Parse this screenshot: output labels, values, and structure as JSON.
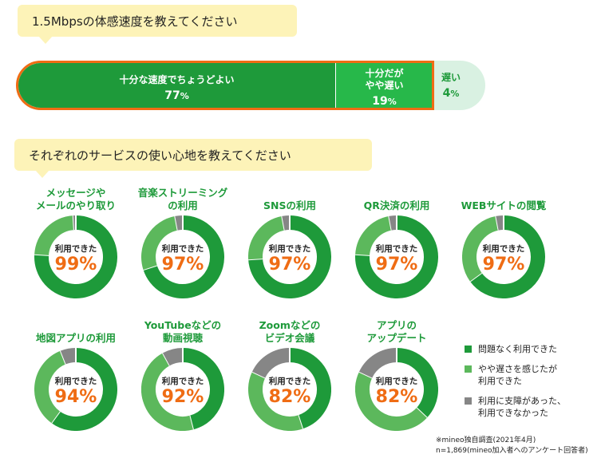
{
  "q1": {
    "text": "1.5Mbpsの体感速度を教えてください"
  },
  "q2": {
    "text": "それぞれのサービスの使い心地を教えてください"
  },
  "colors": {
    "dark_green": "#1e9a3a",
    "light_green": "#5cb85c",
    "gray": "#868686",
    "orange": "#ef6c14"
  },
  "chart_data": [
    {
      "type": "bar",
      "stacked": true,
      "orientation": "horizontal",
      "segments": [
        {
          "label": "十分な速度でちょうどよい",
          "value": 77,
          "unit": "%"
        },
        {
          "label": "十分だが\nやや遅い",
          "value": 19,
          "unit": "%"
        },
        {
          "label": "遅い",
          "value": 4,
          "unit": "%"
        }
      ]
    },
    {
      "type": "pie",
      "center_label": "利用できた",
      "legend": [
        {
          "label": "問題なく利用できた",
          "color": "#1e9a3a"
        },
        {
          "label": "やや遅さを感じたが\n利用できた",
          "color": "#5cb85c"
        },
        {
          "label": "利用に支障があった、\n利用できなかった",
          "color": "#868686"
        }
      ],
      "donuts": [
        {
          "title": "メッセージや\nメールのやり取り",
          "center_value": "99%",
          "values": [
            76,
            23,
            1
          ]
        },
        {
          "title": "音楽ストリーミング\nの利用",
          "center_value": "97%",
          "values": [
            70,
            27,
            3
          ]
        },
        {
          "title": "SNSの利用",
          "center_value": "97%",
          "values": [
            74,
            23,
            3
          ]
        },
        {
          "title": "QR決済の利用",
          "center_value": "97%",
          "values": [
            76,
            21,
            3
          ]
        },
        {
          "title": "WEBサイトの閲覧",
          "center_value": "97%",
          "values": [
            65,
            32,
            3
          ]
        },
        {
          "title": "地図アプリの利用",
          "center_value": "94%",
          "values": [
            60,
            34,
            6
          ]
        },
        {
          "title": "YouTubeなどの\n動画視聴",
          "center_value": "92%",
          "values": [
            46,
            46,
            8
          ]
        },
        {
          "title": "Zoomなどの\nビデオ会議",
          "center_value": "82%",
          "values": [
            45,
            37,
            18
          ]
        },
        {
          "title": "アプリの\nアップデート",
          "center_value": "82%",
          "values": [
            37,
            45,
            18
          ]
        }
      ]
    }
  ],
  "note": {
    "line1": "※mineo独自調査(2021年4月)",
    "line2": "n=1,869(mineo加入者へのアンケート回答者)"
  }
}
